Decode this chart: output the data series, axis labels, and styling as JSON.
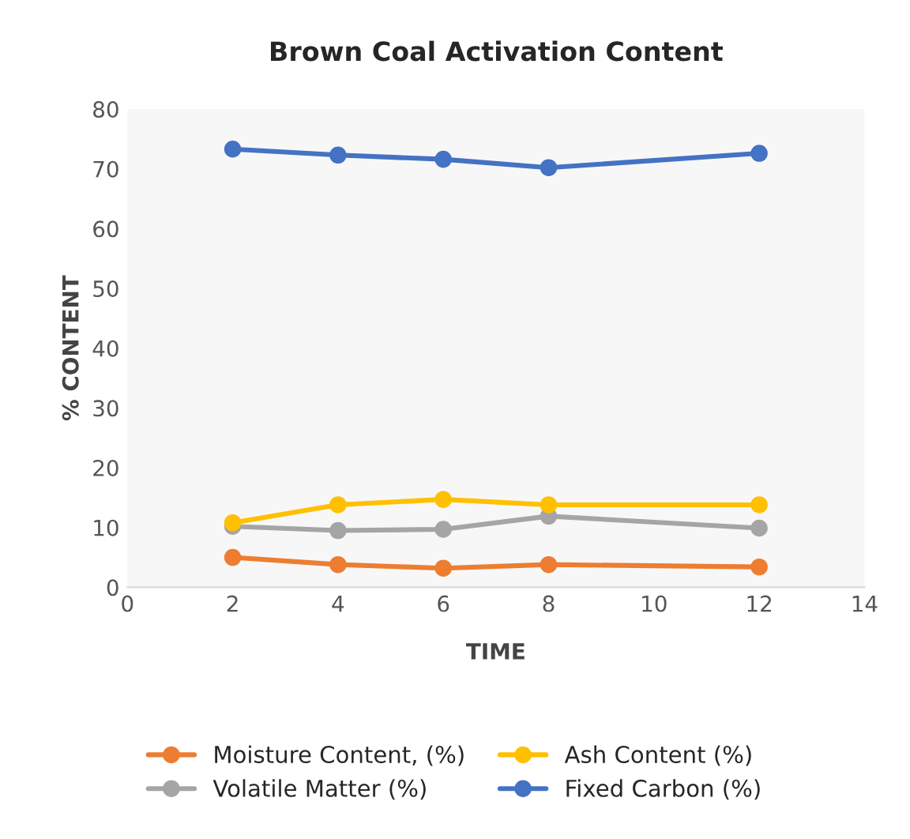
{
  "chart_data": {
    "type": "line",
    "title": "Brown Coal Activation Content",
    "xlabel": "TIME",
    "ylabel": "% CONTENT",
    "x": [
      2,
      4,
      6,
      8,
      12
    ],
    "series": [
      {
        "name": "Moisture Content, (%)",
        "color": "#ed7d31",
        "values": [
          5.0,
          3.8,
          3.2,
          3.8,
          3.4
        ]
      },
      {
        "name": "Volatile Matter (%)",
        "color": "#a5a5a5",
        "values": [
          10.2,
          9.5,
          9.7,
          11.9,
          9.9
        ]
      },
      {
        "name": "Ash Content (%)",
        "color": "#ffc000",
        "values": [
          10.8,
          13.8,
          14.7,
          13.8,
          13.8
        ]
      },
      {
        "name": "Fixed Carbon (%)",
        "color": "#4472c4",
        "values": [
          73.3,
          72.3,
          71.6,
          70.2,
          72.6
        ]
      }
    ],
    "xlim": [
      0,
      14
    ],
    "xticks": [
      0,
      2,
      4,
      6,
      8,
      10,
      12,
      14
    ],
    "ylim": [
      0,
      80
    ],
    "yticks": [
      0,
      10,
      20,
      30,
      40,
      50,
      60,
      70,
      80
    ],
    "grid": false,
    "legend": "bottom",
    "marker": "circle",
    "line_style": "solid"
  }
}
